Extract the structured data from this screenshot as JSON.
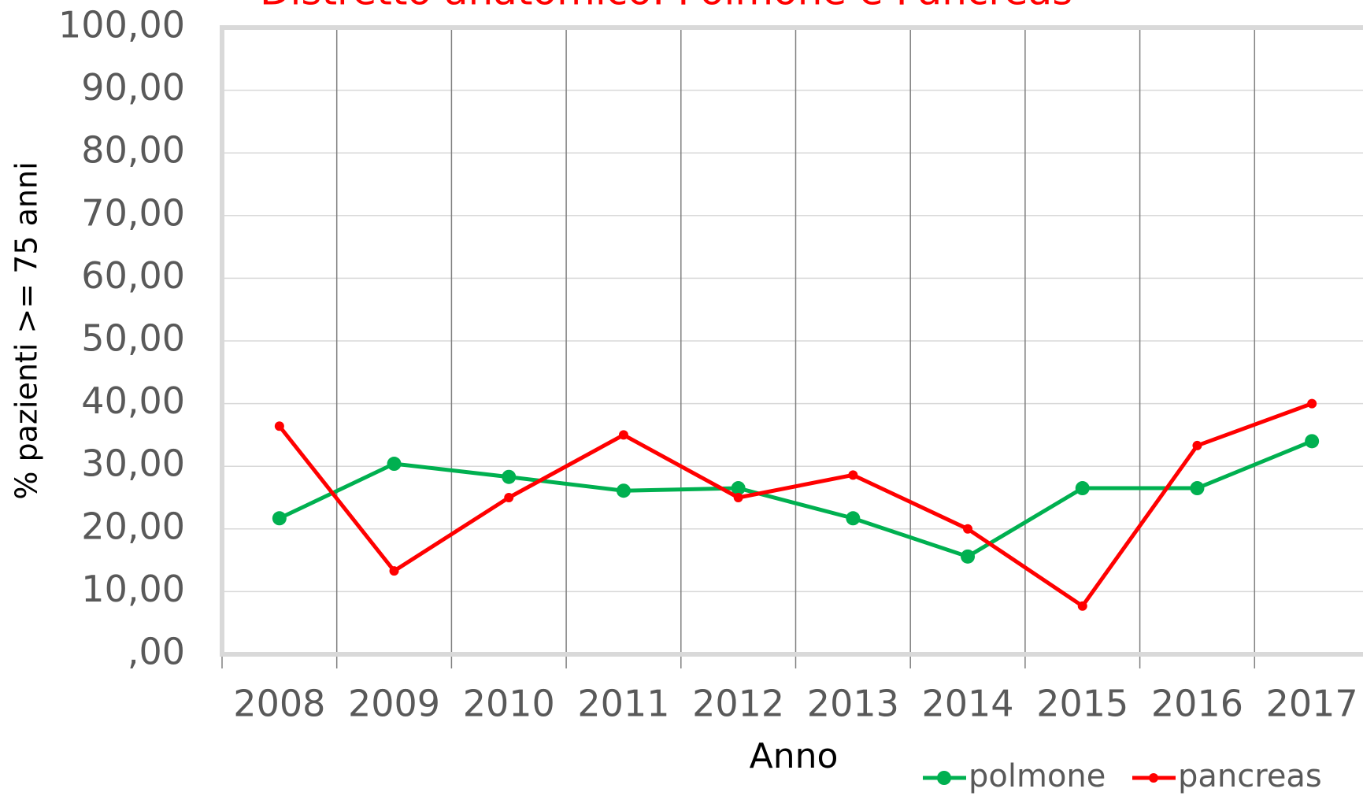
{
  "chart_data": {
    "type": "line",
    "title": "Distretto anatomico: Polmone e Pancreas",
    "x_label": "Anno",
    "y_label": "%  pazienti >= 75 anni",
    "categories": [
      "2008",
      "2009",
      "2010",
      "2011",
      "2012",
      "2013",
      "2014",
      "2015",
      "2016",
      "2017"
    ],
    "series": [
      {
        "name": "polmone",
        "color": "#00b050",
        "values": [
          21.7,
          30.4,
          28.3,
          26.1,
          26.5,
          21.7,
          15.6,
          26.5,
          26.5,
          34.0
        ]
      },
      {
        "name": "pancreas",
        "color": "#ff0000",
        "values": [
          36.4,
          13.3,
          25.0,
          35.0,
          25.0,
          28.6,
          20.0,
          7.7,
          33.3,
          40.0
        ]
      }
    ],
    "ylim": [
      0,
      100
    ],
    "yticks": [
      {
        "value": 0,
        "label": ",00"
      },
      {
        "value": 10,
        "label": "10,00"
      },
      {
        "value": 20,
        "label": "20,00"
      },
      {
        "value": 30,
        "label": "30,00"
      },
      {
        "value": 40,
        "label": "40,00"
      },
      {
        "value": 50,
        "label": "50,00"
      },
      {
        "value": 60,
        "label": "60,00"
      },
      {
        "value": 70,
        "label": "70,00"
      },
      {
        "value": 80,
        "label": "80,00"
      },
      {
        "value": 90,
        "label": "90,00"
      },
      {
        "value": 100,
        "label": "100,00"
      }
    ],
    "grid": true,
    "legend": "bottom-right"
  }
}
